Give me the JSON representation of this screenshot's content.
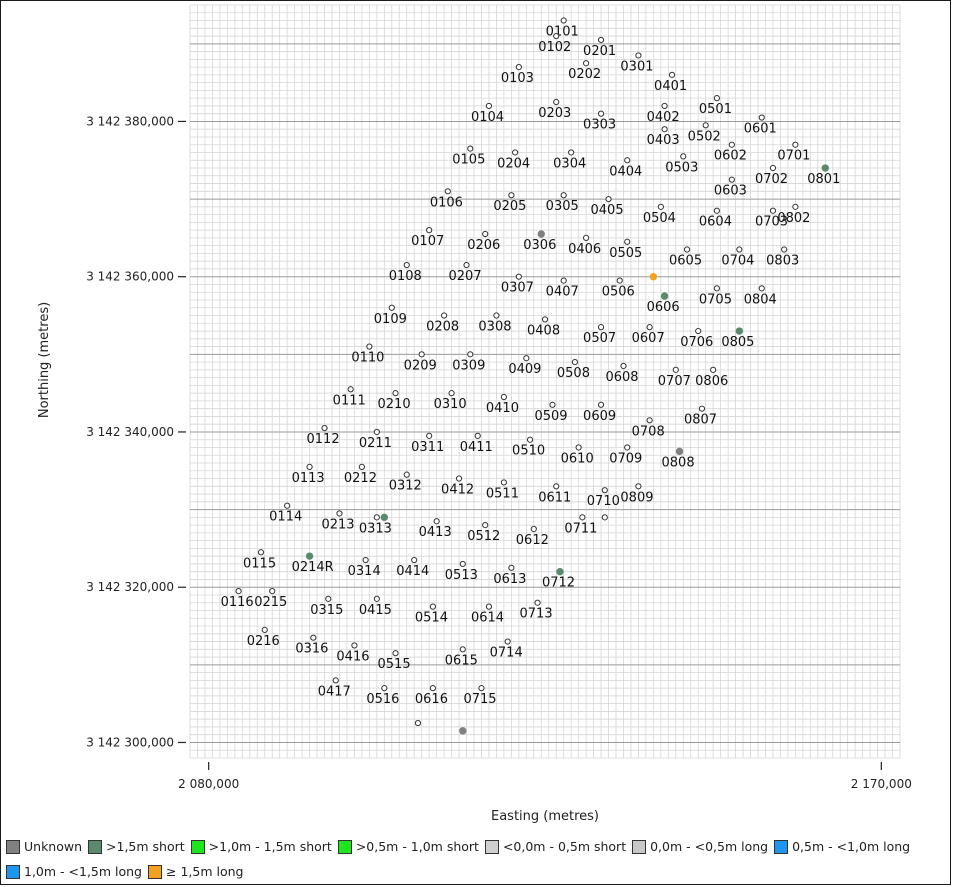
{
  "chart_data": {
    "type": "scatter",
    "xlabel": "Easting (metres)",
    "ylabel": "Northing (metres)",
    "xlim": [
      2077500,
      2172500
    ],
    "ylim": [
      3142298000,
      3142395000
    ],
    "x_ticks": [
      {
        "value": 2080000,
        "label": "2 080,000"
      },
      {
        "value": 2170000,
        "label": "2 170,000"
      }
    ],
    "y_ticks": [
      {
        "value": 3142300000,
        "label": "3 142 300,000"
      },
      {
        "value": 3142320000,
        "label": "3 142 320,000"
      },
      {
        "value": 3142340000,
        "label": "3 142 340,000"
      },
      {
        "value": 3142360000,
        "label": "3 142 360,000"
      },
      {
        "value": 3142380000,
        "label": "3 142 380,000"
      }
    ],
    "grid": true,
    "legend_position": "bottom",
    "legend": [
      {
        "label": "Unknown",
        "color": "#808080"
      },
      {
        "label": ">1,5m short",
        "color": "#5a8a6c"
      },
      {
        "label": ">1,0m - 1,5m short",
        "color": "#1ee61e"
      },
      {
        "label": ">0,5m - 1,0m short",
        "color": "#1ee61e"
      },
      {
        "label": "<0,0m - 0,5m short",
        "color": "#d0d0d0"
      },
      {
        "label": "0,0m - <0,5m long",
        "color": "#c8c8c8"
      },
      {
        "label": "0,5m - <1,0m long",
        "color": "#1e96f0"
      },
      {
        "label": "1,0m - <1,5m long",
        "color": "#1e96f0"
      },
      {
        "label": "≥ 1,5m long",
        "color": "#f4a020"
      }
    ],
    "points": [
      {
        "label": "0101",
        "x": 2127500,
        "y": 3142393000,
        "cls": "open"
      },
      {
        "label": "0102",
        "x": 2126500,
        "y": 3142391000,
        "cls": "open"
      },
      {
        "label": "0201",
        "x": 2132500,
        "y": 3142390500,
        "cls": "open"
      },
      {
        "label": "0103",
        "x": 2121500,
        "y": 3142387000,
        "cls": "open"
      },
      {
        "label": "0202",
        "x": 2130500,
        "y": 3142387500,
        "cls": "open"
      },
      {
        "label": "0301",
        "x": 2137500,
        "y": 3142388500,
        "cls": "open"
      },
      {
        "label": "0401",
        "x": 2142000,
        "y": 3142386000,
        "cls": "open"
      },
      {
        "label": "0104",
        "x": 2117500,
        "y": 3142382000,
        "cls": "open"
      },
      {
        "label": "0203",
        "x": 2126500,
        "y": 3142382500,
        "cls": "open"
      },
      {
        "label": "0303",
        "x": 2132500,
        "y": 3142381000,
        "cls": "open"
      },
      {
        "label": "0402",
        "x": 2141000,
        "y": 3142382000,
        "cls": "open"
      },
      {
        "label": "0501",
        "x": 2148000,
        "y": 3142383000,
        "cls": "open"
      },
      {
        "label": "0403",
        "x": 2141000,
        "y": 3142379000,
        "cls": "open"
      },
      {
        "label": "0502",
        "x": 2146500,
        "y": 3142379500,
        "cls": "open"
      },
      {
        "label": "0601",
        "x": 2154000,
        "y": 3142380500,
        "cls": "open"
      },
      {
        "label": "0105",
        "x": 2115000,
        "y": 3142376500,
        "cls": "open"
      },
      {
        "label": "0204",
        "x": 2121000,
        "y": 3142376000,
        "cls": "open"
      },
      {
        "label": "0304",
        "x": 2128500,
        "y": 3142376000,
        "cls": "open"
      },
      {
        "label": "0404",
        "x": 2136000,
        "y": 3142375000,
        "cls": "open"
      },
      {
        "label": "0503",
        "x": 2143500,
        "y": 3142375500,
        "cls": "open"
      },
      {
        "label": "0602",
        "x": 2150000,
        "y": 3142377000,
        "cls": "open"
      },
      {
        "label": "0701",
        "x": 2158500,
        "y": 3142377000,
        "cls": "open"
      },
      {
        "label": "0603",
        "x": 2150000,
        "y": 3142372500,
        "cls": "open"
      },
      {
        "label": "0702",
        "x": 2155500,
        "y": 3142374000,
        "cls": "open"
      },
      {
        "label": "0801",
        "x": 2162500,
        "y": 3142374000,
        "cls": "dark"
      },
      {
        "label": "0106",
        "x": 2112000,
        "y": 3142371000,
        "cls": "open"
      },
      {
        "label": "0205",
        "x": 2120500,
        "y": 3142370500,
        "cls": "open"
      },
      {
        "label": "0305",
        "x": 2127500,
        "y": 3142370500,
        "cls": "open"
      },
      {
        "label": "0405",
        "x": 2133500,
        "y": 3142370000,
        "cls": "open"
      },
      {
        "label": "0504",
        "x": 2140500,
        "y": 3142369000,
        "cls": "open"
      },
      {
        "label": "0604",
        "x": 2148000,
        "y": 3142368500,
        "cls": "open"
      },
      {
        "label": "0703",
        "x": 2155500,
        "y": 3142368500,
        "cls": "open"
      },
      {
        "label": "0802",
        "x": 2158500,
        "y": 3142369000,
        "cls": "open"
      },
      {
        "label": "0107",
        "x": 2109500,
        "y": 3142366000,
        "cls": "open"
      },
      {
        "label": "0206",
        "x": 2117000,
        "y": 3142365500,
        "cls": "open"
      },
      {
        "label": "0306",
        "x": 2124500,
        "y": 3142365500,
        "cls": "unknown"
      },
      {
        "label": "0406",
        "x": 2130500,
        "y": 3142365000,
        "cls": "open"
      },
      {
        "label": "0505",
        "x": 2136000,
        "y": 3142364500,
        "cls": "open"
      },
      {
        "label": "0605",
        "x": 2144000,
        "y": 3142363500,
        "cls": "open"
      },
      {
        "label": "0704",
        "x": 2151000,
        "y": 3142363500,
        "cls": "open"
      },
      {
        "label": "0803",
        "x": 2157000,
        "y": 3142363500,
        "cls": "open"
      },
      {
        "label": "0108",
        "x": 2106500,
        "y": 3142361500,
        "cls": "open"
      },
      {
        "label": "0207",
        "x": 2114500,
        "y": 3142361500,
        "cls": "open"
      },
      {
        "label": "0307",
        "x": 2121500,
        "y": 3142360000,
        "cls": "open"
      },
      {
        "label": "0407",
        "x": 2127500,
        "y": 3142359500,
        "cls": "open"
      },
      {
        "label": "0506",
        "x": 2135000,
        "y": 3142359500,
        "cls": "open"
      },
      {
        "label": "0606_o",
        "x": 2139500,
        "y": 3142360000,
        "cls": "orange"
      },
      {
        "label": "0606",
        "x": 2141000,
        "y": 3142357500,
        "cls": "dark"
      },
      {
        "label": "0705",
        "x": 2148000,
        "y": 3142358500,
        "cls": "open"
      },
      {
        "label": "0804",
        "x": 2154000,
        "y": 3142358500,
        "cls": "open"
      },
      {
        "label": "0109",
        "x": 2104500,
        "y": 3142356000,
        "cls": "open"
      },
      {
        "label": "0208",
        "x": 2111500,
        "y": 3142355000,
        "cls": "open"
      },
      {
        "label": "0308",
        "x": 2118500,
        "y": 3142355000,
        "cls": "open"
      },
      {
        "label": "0408",
        "x": 2125000,
        "y": 3142354500,
        "cls": "open"
      },
      {
        "label": "0507",
        "x": 2132500,
        "y": 3142353500,
        "cls": "open"
      },
      {
        "label": "0607",
        "x": 2139000,
        "y": 3142353500,
        "cls": "open"
      },
      {
        "label": "0706",
        "x": 2145500,
        "y": 3142353000,
        "cls": "open"
      },
      {
        "label": "0805",
        "x": 2151000,
        "y": 3142353000,
        "cls": "dark"
      },
      {
        "label": "0110",
        "x": 2101500,
        "y": 3142351000,
        "cls": "open"
      },
      {
        "label": "0209",
        "x": 2108500,
        "y": 3142350000,
        "cls": "open"
      },
      {
        "label": "0309",
        "x": 2115000,
        "y": 3142350000,
        "cls": "open"
      },
      {
        "label": "0409",
        "x": 2122500,
        "y": 3142349500,
        "cls": "open"
      },
      {
        "label": "0508",
        "x": 2129000,
        "y": 3142349000,
        "cls": "open"
      },
      {
        "label": "0608",
        "x": 2135500,
        "y": 3142348500,
        "cls": "open"
      },
      {
        "label": "0707",
        "x": 2142500,
        "y": 3142348000,
        "cls": "open"
      },
      {
        "label": "0806",
        "x": 2147500,
        "y": 3142348000,
        "cls": "open"
      },
      {
        "label": "0111",
        "x": 2099000,
        "y": 3142345500,
        "cls": "open"
      },
      {
        "label": "0210",
        "x": 2105000,
        "y": 3142345000,
        "cls": "open"
      },
      {
        "label": "0310",
        "x": 2112500,
        "y": 3142345000,
        "cls": "open"
      },
      {
        "label": "0410",
        "x": 2119500,
        "y": 3142344500,
        "cls": "open"
      },
      {
        "label": "0509",
        "x": 2126000,
        "y": 3142343500,
        "cls": "open"
      },
      {
        "label": "0609",
        "x": 2132500,
        "y": 3142343500,
        "cls": "open"
      },
      {
        "label": "0807",
        "x": 2146000,
        "y": 3142343000,
        "cls": "open"
      },
      {
        "label": "0708",
        "x": 2139000,
        "y": 3142341500,
        "cls": "open"
      },
      {
        "label": "0112",
        "x": 2095500,
        "y": 3142340500,
        "cls": "open"
      },
      {
        "label": "0211",
        "x": 2102500,
        "y": 3142340000,
        "cls": "open"
      },
      {
        "label": "0311",
        "x": 2109500,
        "y": 3142339500,
        "cls": "open"
      },
      {
        "label": "0411",
        "x": 2116000,
        "y": 3142339500,
        "cls": "open"
      },
      {
        "label": "0510",
        "x": 2123000,
        "y": 3142339000,
        "cls": "open"
      },
      {
        "label": "0610",
        "x": 2129500,
        "y": 3142338000,
        "cls": "open"
      },
      {
        "label": "0709",
        "x": 2136000,
        "y": 3142338000,
        "cls": "open"
      },
      {
        "label": "0808",
        "x": 2143000,
        "y": 3142337500,
        "cls": "unknown"
      },
      {
        "label": "0113",
        "x": 2093500,
        "y": 3142335500,
        "cls": "open"
      },
      {
        "label": "0212",
        "x": 2100500,
        "y": 3142335500,
        "cls": "open"
      },
      {
        "label": "0312",
        "x": 2106500,
        "y": 3142334500,
        "cls": "open"
      },
      {
        "label": "0412",
        "x": 2113500,
        "y": 3142334000,
        "cls": "open"
      },
      {
        "label": "0511",
        "x": 2119500,
        "y": 3142333500,
        "cls": "open"
      },
      {
        "label": "0611",
        "x": 2126500,
        "y": 3142333000,
        "cls": "open"
      },
      {
        "label": "0710",
        "x": 2133000,
        "y": 3142332500,
        "cls": "open"
      },
      {
        "label": "0809",
        "x": 2137500,
        "y": 3142333000,
        "cls": "open"
      },
      {
        "label": "0114",
        "x": 2090500,
        "y": 3142330500,
        "cls": "open"
      },
      {
        "label": "0213",
        "x": 2097500,
        "y": 3142329500,
        "cls": "open"
      },
      {
        "label": "0313",
        "x": 2102500,
        "y": 3142329000,
        "cls": "open"
      },
      {
        "label": "0313_g",
        "x": 2103500,
        "y": 3142329000,
        "cls": "dark"
      },
      {
        "label": "0413",
        "x": 2110500,
        "y": 3142328500,
        "cls": "open"
      },
      {
        "label": "0512",
        "x": 2117000,
        "y": 3142328000,
        "cls": "open"
      },
      {
        "label": "0612",
        "x": 2123500,
        "y": 3142327500,
        "cls": "open"
      },
      {
        "label": "0711",
        "x": 2130000,
        "y": 3142329000,
        "cls": "open"
      },
      {
        "label": "0711_b",
        "x": 2133000,
        "y": 3142329000,
        "cls": "open"
      },
      {
        "label": "0115",
        "x": 2087000,
        "y": 3142324500,
        "cls": "open"
      },
      {
        "label": "0214R",
        "x": 2093500,
        "y": 3142324000,
        "cls": "dark"
      },
      {
        "label": "0314",
        "x": 2101000,
        "y": 3142323500,
        "cls": "open"
      },
      {
        "label": "0414",
        "x": 2107500,
        "y": 3142323500,
        "cls": "open"
      },
      {
        "label": "0513",
        "x": 2114000,
        "y": 3142323000,
        "cls": "open"
      },
      {
        "label": "0613",
        "x": 2120500,
        "y": 3142322500,
        "cls": "open"
      },
      {
        "label": "0712",
        "x": 2127000,
        "y": 3142322000,
        "cls": "dark"
      },
      {
        "label": "0116",
        "x": 2084000,
        "y": 3142319500,
        "cls": "open"
      },
      {
        "label": "0215",
        "x": 2088500,
        "y": 3142319500,
        "cls": "open"
      },
      {
        "label": "0315",
        "x": 2096000,
        "y": 3142318500,
        "cls": "open"
      },
      {
        "label": "0415",
        "x": 2102500,
        "y": 3142318500,
        "cls": "open"
      },
      {
        "label": "0514",
        "x": 2110000,
        "y": 3142317500,
        "cls": "open"
      },
      {
        "label": "0614",
        "x": 2117500,
        "y": 3142317500,
        "cls": "open"
      },
      {
        "label": "0713",
        "x": 2124000,
        "y": 3142318000,
        "cls": "open"
      },
      {
        "label": "0216",
        "x": 2087500,
        "y": 3142314500,
        "cls": "open"
      },
      {
        "label": "0316",
        "x": 2094000,
        "y": 3142313500,
        "cls": "open"
      },
      {
        "label": "0416",
        "x": 2099500,
        "y": 3142312500,
        "cls": "open"
      },
      {
        "label": "0515",
        "x": 2105000,
        "y": 3142311500,
        "cls": "open"
      },
      {
        "label": "0615",
        "x": 2114000,
        "y": 3142312000,
        "cls": "open"
      },
      {
        "label": "0714",
        "x": 2120000,
        "y": 3142313000,
        "cls": "open"
      },
      {
        "label": "0417",
        "x": 2097000,
        "y": 3142308000,
        "cls": "open"
      },
      {
        "label": "0516",
        "x": 2103500,
        "y": 3142307000,
        "cls": "open"
      },
      {
        "label": "0616",
        "x": 2110000,
        "y": 3142307000,
        "cls": "open"
      },
      {
        "label": "0715",
        "x": 2116500,
        "y": 3142307000,
        "cls": "open"
      },
      {
        "label": "p_bottom1",
        "x": 2108000,
        "y": 3142302500,
        "cls": "open"
      },
      {
        "label": "p_bottom2",
        "x": 2114000,
        "y": 3142301500,
        "cls": "unknown"
      }
    ]
  }
}
